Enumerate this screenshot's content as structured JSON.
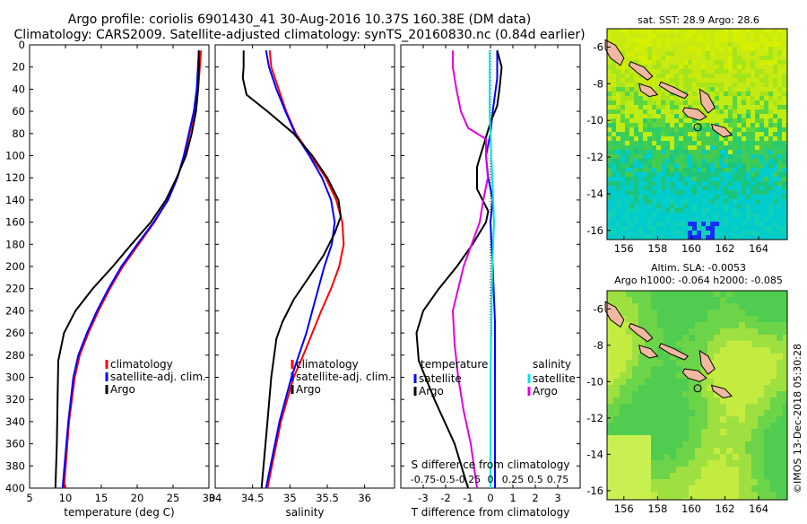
{
  "header": {
    "line1": "Argo profile: coriolis 6901430_41 30-Aug-2016 10.37S 160.38E (DM data)",
    "line2": "Climatology: CARS2009. Satellite-adjusted climatology: synTS_20160830.nc (0.84d earlier)"
  },
  "colors": {
    "climatology": "#ff0000",
    "satellite": "#0000ff",
    "argo": "#000000",
    "sat_diff": "#00e5e5",
    "argo_sdiff": "#e000e0",
    "land": "#f0b8a0"
  },
  "chart_data": [
    {
      "type": "line",
      "id": "temperature",
      "xlabel": "temperature (deg C)",
      "xlim": [
        5,
        30
      ],
      "ylim": [
        400,
        0
      ],
      "xticks": [
        5,
        10,
        15,
        20,
        25,
        30
      ],
      "xtick_labels": [
        "5",
        "10",
        "15",
        "20",
        "25",
        "30"
      ],
      "yticks": [
        0,
        20,
        40,
        60,
        80,
        100,
        120,
        140,
        160,
        180,
        200,
        220,
        240,
        260,
        280,
        300,
        320,
        340,
        360,
        380,
        400
      ],
      "ytick_labels": [
        "0",
        "20",
        "40",
        "60",
        "80",
        "100",
        "120",
        "140",
        "160",
        "180",
        "200",
        "220",
        "240",
        "260",
        "280",
        "300",
        "320",
        "340",
        "360",
        "380",
        "400"
      ],
      "legend": [
        "climatology",
        "satellite-adj. clim.",
        "Argo"
      ],
      "series": [
        {
          "name": "climatology",
          "color": "#ff0000",
          "depth": [
            5,
            40,
            60,
            80,
            100,
            120,
            140,
            160,
            180,
            200,
            220,
            240,
            260,
            280,
            300,
            340,
            400
          ],
          "values": [
            28.9,
            28.5,
            28.0,
            27.3,
            26.6,
            25.6,
            24.3,
            22.4,
            20.2,
            18.0,
            16.2,
            14.6,
            13.2,
            12.0,
            11.3,
            10.5,
            9.8
          ]
        },
        {
          "name": "satellite-adj. clim.",
          "color": "#0000ff",
          "depth": [
            5,
            40,
            60,
            80,
            100,
            120,
            140,
            160,
            180,
            200,
            220,
            240,
            260,
            280,
            300,
            340,
            400
          ],
          "values": [
            28.6,
            28.3,
            27.9,
            27.2,
            26.5,
            25.6,
            24.3,
            22.3,
            20.0,
            17.8,
            16.0,
            14.4,
            13.0,
            11.8,
            11.1,
            10.4,
            9.6
          ]
        },
        {
          "name": "Argo",
          "color": "#000000",
          "depth": [
            5,
            20,
            40,
            60,
            80,
            100,
            120,
            140,
            160,
            180,
            200,
            220,
            240,
            260,
            285,
            320,
            360,
            400
          ],
          "values": [
            28.6,
            28.6,
            28.5,
            28.2,
            27.6,
            26.8,
            25.5,
            24.0,
            21.9,
            19.2,
            16.6,
            13.8,
            11.4,
            9.8,
            9.0,
            8.9,
            8.8,
            8.6
          ]
        }
      ]
    },
    {
      "type": "line",
      "id": "salinity",
      "xlabel": "salinity",
      "xlim": [
        34,
        36.4
      ],
      "ylim": [
        400,
        0
      ],
      "xticks": [
        34,
        34.5,
        35,
        35.5,
        36
      ],
      "xtick_labels": [
        "34",
        "34.5",
        "35",
        "35.5",
        "36"
      ],
      "legend": [
        "climatology",
        "satellite-adj. clim.",
        "Argo"
      ],
      "series": [
        {
          "name": "climatology",
          "color": "#ff0000",
          "depth": [
            5,
            20,
            40,
            60,
            80,
            100,
            120,
            140,
            160,
            180,
            200,
            220,
            240,
            260,
            280,
            300,
            340,
            400
          ],
          "values": [
            34.73,
            34.75,
            34.85,
            34.95,
            35.08,
            35.28,
            35.48,
            35.62,
            35.7,
            35.72,
            35.66,
            35.55,
            35.42,
            35.3,
            35.18,
            35.05,
            34.88,
            34.7
          ]
        },
        {
          "name": "satellite-adj. clim.",
          "color": "#0000ff",
          "depth": [
            5,
            20,
            40,
            60,
            80,
            100,
            120,
            140,
            160,
            180,
            200,
            220,
            240,
            260,
            280,
            300,
            340,
            400
          ],
          "values": [
            34.68,
            34.72,
            34.82,
            34.94,
            35.07,
            35.26,
            35.43,
            35.55,
            35.6,
            35.56,
            35.46,
            35.38,
            35.3,
            35.22,
            35.12,
            35.02,
            34.86,
            34.68
          ]
        },
        {
          "name": "Argo",
          "color": "#000000",
          "depth": [
            5,
            20,
            30,
            45,
            60,
            80,
            100,
            120,
            140,
            155,
            170,
            190,
            210,
            230,
            250,
            265,
            300,
            340,
            400
          ],
          "values": [
            34.38,
            34.38,
            34.37,
            34.42,
            34.7,
            35.05,
            35.3,
            35.5,
            35.65,
            35.68,
            35.6,
            35.45,
            35.25,
            35.05,
            34.9,
            34.82,
            34.75,
            34.7,
            34.62
          ]
        }
      ]
    },
    {
      "type": "line",
      "id": "difference",
      "xlabel": "T difference from climatology",
      "top_xlabel": "S difference from climatology",
      "xlim": [
        -4,
        4
      ],
      "ylim": [
        400,
        0
      ],
      "xticks": [
        -3,
        -2,
        -1,
        0,
        1,
        2,
        3
      ],
      "xtick_labels": [
        "-3",
        "-2",
        "-1",
        "0",
        "1",
        "2",
        "3"
      ],
      "s_xticks": [
        -0.75,
        -0.5,
        -0.25,
        0,
        0.25,
        0.5,
        0.75
      ],
      "s_xtick_labels": [
        "-0.75",
        "-0.5",
        "-0.25",
        "0",
        "0.25",
        "0.5",
        "0.75"
      ],
      "legend_t_title": "temperature",
      "legend_s_title": "salinity",
      "legend_t": [
        "satellite",
        "Argo"
      ],
      "legend_s": [
        "satellite",
        "Argo"
      ],
      "series": [
        {
          "name": "T satellite",
          "color": "#0000ff",
          "depth": [
            5,
            30,
            60,
            80,
            100,
            120,
            140,
            160,
            200,
            250,
            300,
            350,
            400
          ],
          "values": [
            0.3,
            0.3,
            0.1,
            0.0,
            -0.2,
            -0.1,
            0.1,
            0.0,
            0.1,
            0.2,
            0.2,
            0.2,
            0.2
          ]
        },
        {
          "name": "T Argo",
          "color": "#000000",
          "depth": [
            5,
            20,
            40,
            55,
            70,
            90,
            110,
            130,
            150,
            160,
            180,
            200,
            220,
            240,
            260,
            285,
            320,
            360,
            400
          ],
          "values": [
            0.3,
            0.5,
            0.4,
            0.3,
            0.0,
            -0.3,
            -0.6,
            -0.6,
            -0.1,
            -0.2,
            -0.8,
            -1.5,
            -2.3,
            -3.0,
            -3.3,
            -3.2,
            -2.5,
            -1.6,
            -1.0
          ]
        },
        {
          "name": "S satellite",
          "color": "#00e5e5",
          "depth": [
            5,
            30,
            60,
            80,
            100,
            120,
            140,
            160,
            200,
            250,
            300,
            350,
            400
          ],
          "values": [
            -0.01,
            -0.01,
            -0.01,
            0.0,
            0.01,
            0.02,
            0.03,
            0.04,
            0.02,
            0.01,
            0.0,
            0.0,
            0.0
          ]
        },
        {
          "name": "S Argo",
          "color": "#e000e0",
          "depth": [
            5,
            20,
            40,
            60,
            75,
            85,
            100,
            120,
            140,
            160,
            200,
            240,
            270,
            300,
            330,
            360,
            400
          ],
          "values": [
            -0.42,
            -0.42,
            -0.38,
            -0.33,
            -0.25,
            -0.05,
            -0.05,
            -0.03,
            -0.08,
            -0.12,
            -0.3,
            -0.42,
            -0.4,
            -0.36,
            -0.3,
            -0.22,
            -0.15
          ]
        }
      ]
    }
  ],
  "maps": {
    "sst": {
      "title": "sat. SST: 28.9 Argo: 28.6",
      "xticks": [
        156,
        158,
        160,
        162,
        164
      ],
      "xtick_labels": [
        "156",
        "158",
        "160",
        "162",
        "164"
      ],
      "yticks": [
        -6,
        -8,
        -10,
        -12,
        -14,
        -16
      ],
      "ytick_labels": [
        "-6",
        "-8",
        "-10",
        "-12",
        "-14",
        "-16"
      ]
    },
    "sla": {
      "title1": "Altim. SLA: -0.0053",
      "title2": "Argo h1000: -0.064 h2000: -0.085",
      "xticks": [
        156,
        158,
        160,
        162,
        164
      ],
      "xtick_labels": [
        "156",
        "158",
        "160",
        "162",
        "164"
      ],
      "yticks": [
        -6,
        -8,
        -10,
        -12,
        -14,
        -16
      ],
      "ytick_labels": [
        "-6",
        "-8",
        "-10",
        "-12",
        "-14",
        "-16"
      ]
    },
    "profile_location": {
      "lon": 160.38,
      "lat": -10.37
    },
    "credit": "©IMOS 13-Dec-2018 05:30:28"
  }
}
